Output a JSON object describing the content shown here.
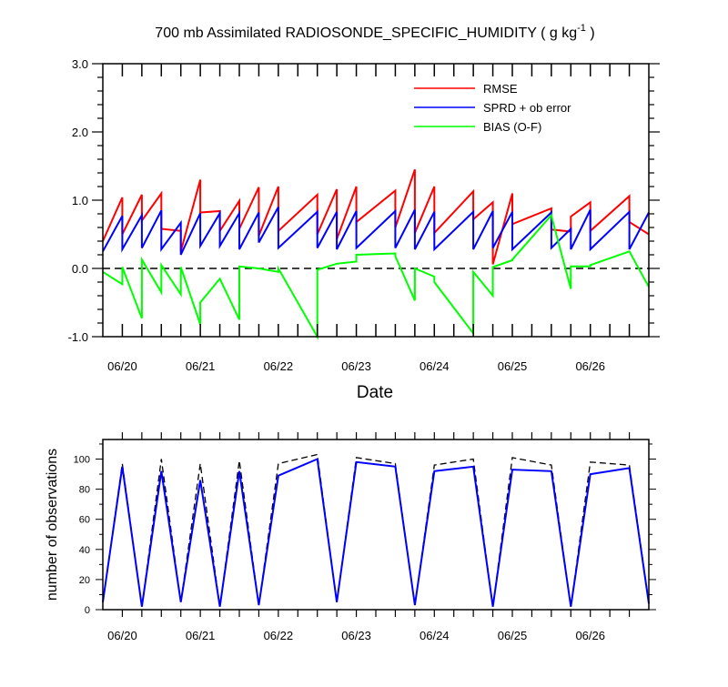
{
  "chart_data": [
    {
      "type": "line",
      "title": "700 mb Assimilated RADIOSONDE_SPECIFIC_HUMIDITY ( g kg",
      "title_exponent": "-1",
      "title_tail": " )",
      "xlabel": "Date",
      "ylabel": "",
      "xlim": [
        0,
        28
      ],
      "ylim": [
        -1.0,
        3.0
      ],
      "yticks": [
        -1.0,
        0.0,
        1.0,
        2.0,
        3.0
      ],
      "ytick_labels": [
        "-1.0",
        "0.0",
        "1.0",
        "2.0",
        "3.0"
      ],
      "xticks": [
        1,
        5,
        9,
        13,
        17,
        21,
        25
      ],
      "xtick_labels": [
        "06/20",
        "06/21",
        "06/22",
        "06/23",
        "06/24",
        "06/25",
        "06/26"
      ],
      "reference_line": 0.0,
      "legend": [
        {
          "name": "RMSE",
          "color": "#ff0000"
        },
        {
          "name": "SPRD + ob error",
          "color": "#0000ff"
        },
        {
          "name": "BIAS (O-F)",
          "color": "#00ff00"
        }
      ],
      "series": [
        {
          "name": "RMSE",
          "color": "#ff0000",
          "x": [
            0,
            1,
            1,
            2,
            2,
            3,
            3,
            4,
            4,
            5,
            5,
            6,
            6,
            7,
            7,
            8,
            8,
            9,
            9,
            11,
            11,
            12,
            12,
            13,
            13,
            15,
            15,
            16,
            16,
            17,
            17,
            19,
            19,
            20,
            20,
            21,
            21,
            23,
            23,
            24,
            24,
            25,
            25,
            27,
            27,
            28
          ],
          "y": [
            0.4,
            1.04,
            0.5,
            1.08,
            0.7,
            1.1,
            0.58,
            0.55,
            0.25,
            1.3,
            0.82,
            0.84,
            0.55,
            0.99,
            0.58,
            1.19,
            0.48,
            1.2,
            0.55,
            1.08,
            0.5,
            1.16,
            0.43,
            1.2,
            0.68,
            1.14,
            0.6,
            1.45,
            0.52,
            1.2,
            0.52,
            1.13,
            0.72,
            0.97,
            0.06,
            1.1,
            0.65,
            0.88,
            0.57,
            0.54,
            0.76,
            0.97,
            0.55,
            1.06,
            0.68,
            0.5
          ]
        },
        {
          "name": "SPRD + ob error",
          "color": "#0000ff",
          "x": [
            0,
            1,
            1,
            2,
            2,
            3,
            3,
            4,
            4,
            5,
            5,
            6,
            6,
            7,
            7,
            8,
            8,
            9,
            9,
            11,
            11,
            12,
            12,
            13,
            13,
            15,
            15,
            16,
            16,
            17,
            17,
            19,
            19,
            20,
            20,
            21,
            21,
            23,
            23,
            24,
            24,
            25,
            25,
            27,
            27,
            28
          ],
          "y": [
            0.25,
            0.77,
            0.28,
            0.78,
            0.3,
            0.85,
            0.28,
            0.67,
            0.2,
            0.81,
            0.33,
            0.81,
            0.33,
            0.81,
            0.28,
            0.82,
            0.38,
            0.9,
            0.3,
            0.83,
            0.3,
            0.83,
            0.28,
            0.84,
            0.3,
            0.84,
            0.3,
            0.86,
            0.28,
            0.83,
            0.28,
            0.83,
            0.28,
            0.84,
            0.3,
            0.83,
            0.28,
            0.82,
            0.3,
            0.58,
            0.28,
            0.86,
            0.28,
            0.83,
            0.28,
            0.82
          ]
        },
        {
          "name": "BIAS (O-F)",
          "color": "#00ff00",
          "x": [
            0,
            1,
            1,
            2,
            2,
            3,
            3,
            4,
            4,
            5,
            5,
            6,
            6,
            7,
            7,
            8,
            8,
            9,
            9,
            11,
            11,
            12,
            12,
            13,
            13,
            15,
            15,
            16,
            16,
            17,
            17,
            19,
            19,
            20,
            20,
            21,
            21,
            23,
            23,
            24,
            24,
            25,
            25,
            27,
            27,
            28
          ],
          "y": [
            -0.05,
            -0.23,
            0.02,
            -0.73,
            0.13,
            -0.35,
            0.05,
            -0.38,
            0.02,
            -0.82,
            -0.5,
            -0.15,
            -0.15,
            -0.75,
            0.03,
            0.0,
            0.0,
            -0.05,
            0.0,
            -1.0,
            -0.02,
            0.07,
            0.07,
            0.1,
            0.2,
            0.22,
            0.18,
            -0.47,
            0.0,
            -0.12,
            -0.2,
            -0.95,
            -0.05,
            -0.4,
            0.02,
            0.12,
            0.13,
            0.78,
            0.77,
            -0.3,
            0.03,
            0.03,
            0.05,
            0.25,
            0.25,
            -0.27
          ]
        }
      ]
    },
    {
      "type": "line",
      "title": "",
      "xlabel": "",
      "ylabel": "number of observations",
      "xlim": [
        0,
        28
      ],
      "ylim": [
        0,
        113
      ],
      "yticks": [
        0,
        20,
        40,
        60,
        80,
        100
      ],
      "ytick_labels": [
        "0",
        "20",
        "40",
        "60",
        "80",
        "100"
      ],
      "xticks": [
        1,
        5,
        9,
        13,
        17,
        21,
        25
      ],
      "xtick_labels": [
        "06/20",
        "06/21",
        "06/22",
        "06/23",
        "06/24",
        "06/25",
        "06/26"
      ],
      "series": [
        {
          "name": "observations (dashed)",
          "color": "#000000",
          "style": "dashed",
          "x": [
            0,
            1,
            2,
            3,
            4,
            5,
            6,
            7,
            8,
            9,
            11,
            12,
            13,
            15,
            16,
            17,
            19,
            20,
            21,
            23,
            24,
            25,
            27,
            28
          ],
          "y": [
            5,
            97,
            2,
            100,
            5,
            97,
            2,
            99,
            3,
            97,
            103,
            5,
            101,
            97,
            3,
            96,
            100,
            2,
            101,
            96,
            2,
            98,
            96,
            5
          ]
        },
        {
          "name": "observations (solid)",
          "color": "#0000ff",
          "style": "solid",
          "x": [
            0,
            1,
            2,
            3,
            4,
            5,
            6,
            7,
            8,
            9,
            11,
            12,
            13,
            15,
            16,
            17,
            19,
            20,
            21,
            23,
            24,
            25,
            27,
            28
          ],
          "y": [
            5,
            95,
            2,
            92,
            5,
            86,
            2,
            92,
            3,
            89,
            100,
            5,
            98,
            95,
            3,
            92,
            95,
            2,
            93,
            92,
            2,
            90,
            94,
            4
          ]
        }
      ]
    }
  ]
}
